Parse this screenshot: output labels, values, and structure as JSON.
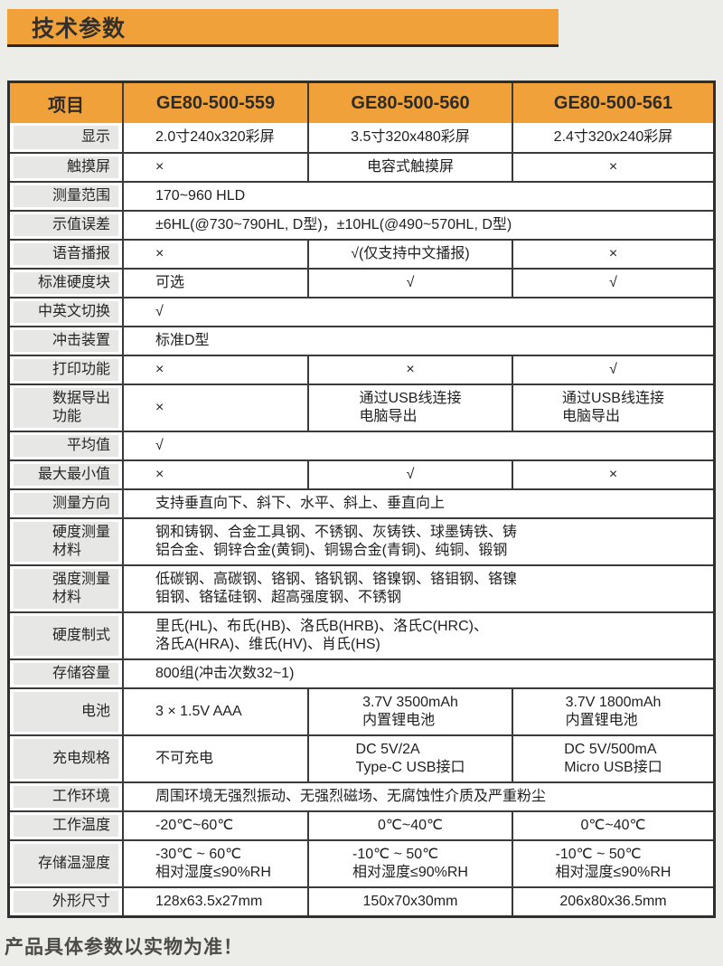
{
  "page": {
    "title": "技术参数",
    "footnote": "产品具体参数以实物为准！"
  },
  "colors": {
    "accent_orange": "#F0A139",
    "border_dark": "#3A3A3A",
    "label_gray": "#E7E7E6",
    "page_bg": "#ECEDE9"
  },
  "table": {
    "header": {
      "item": "项目",
      "models": [
        "GE80-500-559",
        "GE80-500-560",
        "GE80-500-561"
      ]
    },
    "rows": [
      {
        "label": "显示",
        "cells": [
          "2.0寸240x320彩屏",
          "3.5寸320x480彩屏",
          "2.4寸320x240彩屏"
        ]
      },
      {
        "label": "触摸屏",
        "cells": [
          "×",
          "电容式触摸屏",
          "×"
        ]
      },
      {
        "label": "测量范围",
        "span": "170~960 HLD"
      },
      {
        "label": "示值误差",
        "span": "±6HL(@730~790HL, D型)，±10HL(@490~570HL, D型)"
      },
      {
        "label": "语音播报",
        "cells": [
          "×",
          "√(仅支持中文播报)",
          "×"
        ]
      },
      {
        "label": "标准硬度块",
        "cells": [
          "可选",
          "√",
          "√"
        ]
      },
      {
        "label": "中英文切换",
        "span": "√"
      },
      {
        "label": "冲击装置",
        "span": "标准D型"
      },
      {
        "label": "打印功能",
        "cells": [
          "×",
          "×",
          "√"
        ]
      },
      {
        "label": "数据导出\n功能",
        "cells": [
          "×",
          "通过USB线连接\n电脑导出",
          "通过USB线连接\n电脑导出"
        ]
      },
      {
        "label": "平均值",
        "span": "√"
      },
      {
        "label": "最大最小值",
        "cells": [
          "×",
          "√",
          "×"
        ]
      },
      {
        "label": "测量方向",
        "span": "支持垂直向下、斜下、水平、斜上、垂直向上"
      },
      {
        "label": "硬度测量\n材料",
        "span": "钢和铸钢、合金工具钢、不锈钢、灰铸铁、球墨铸铁、铸\n铝合金、铜锌合金(黄铜)、铜锡合金(青铜)、纯铜、锻钢"
      },
      {
        "label": "强度测量\n材料",
        "span": "低碳钢、高碳钢、铬钢、铬钒钢、铬镍钢、铬钼钢、铬镍\n钼钢、铬锰硅钢、超高强度钢、不锈钢"
      },
      {
        "label": "硬度制式",
        "span": "里氏(HL)、布氏(HB)、洛氏B(HRB)、洛氏C(HRC)、\n洛氏A(HRA)、维氏(HV)、肖氏(HS)"
      },
      {
        "label": "存储容量",
        "span": "800组(冲击次数32~1)"
      },
      {
        "label": "电池",
        "cells": [
          "3 × 1.5V AAA",
          "3.7V 3500mAh\n内置锂电池",
          "3.7V 1800mAh\n内置锂电池"
        ]
      },
      {
        "label": "充电规格",
        "cells": [
          "不可充电",
          "DC 5V/2A\nType-C USB接口",
          "DC 5V/500mA\nMicro USB接口"
        ]
      },
      {
        "label": "工作环境",
        "span": "周围环境无强烈振动、无强烈磁场、无腐蚀性介质及严重粉尘"
      },
      {
        "label": "工作温度",
        "cells": [
          "-20℃~60℃",
          "0℃~40℃",
          "0℃~40℃"
        ]
      },
      {
        "label": "存储温湿度",
        "cells": [
          "-30℃ ~ 60℃\n相对湿度≤90%RH",
          "-10℃ ~ 50℃\n相对湿度≤90%RH",
          "-10℃ ~ 50℃\n相对湿度≤90%RH"
        ]
      },
      {
        "label": "外形尺寸",
        "cells": [
          "128x63.5x27mm",
          "150x70x30mm",
          "206x80x36.5mm"
        ]
      }
    ]
  }
}
